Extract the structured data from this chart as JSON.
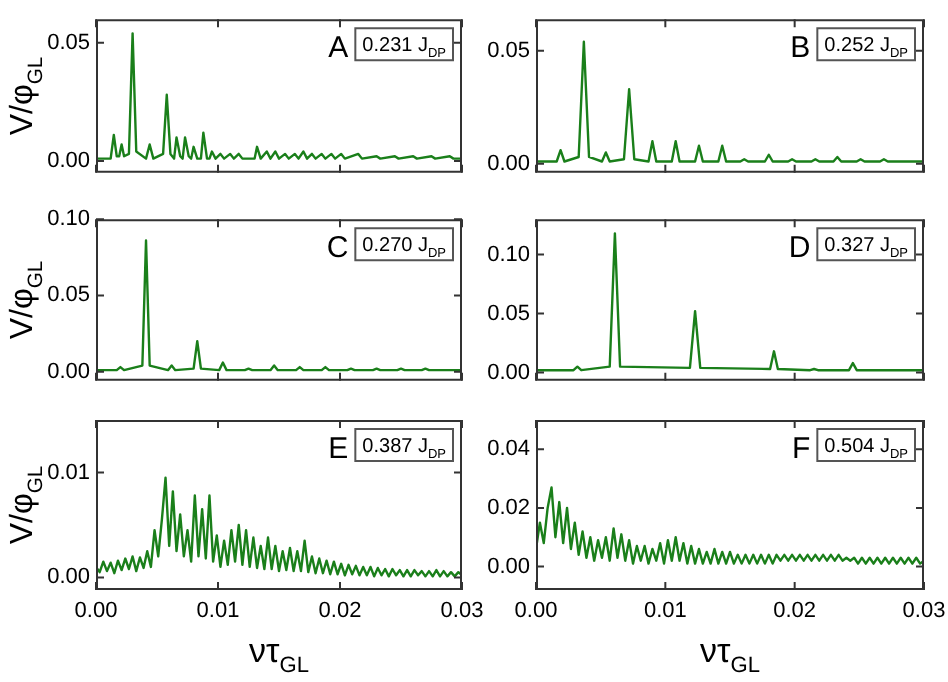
{
  "chart_data": [
    {
      "type": "line",
      "ylabel": "V/φ$_{GL}$",
      "annotations": [
        "A",
        "0.231 J$_{DP}$"
      ],
      "xlim": [
        0,
        0.03
      ],
      "ylim": [
        -0.005,
        0.06
      ],
      "xticks": [
        {
          "value": 0,
          "label": null
        },
        {
          "value": 0.01,
          "label": null
        },
        {
          "value": 0.02,
          "label": null
        },
        {
          "value": 0.03,
          "label": null
        }
      ],
      "yticks": [
        {
          "value": 0,
          "label": "0.00"
        },
        {
          "value": 0.05,
          "label": "0.05"
        }
      ],
      "tick_labels": "y",
      "series": [
        {
          "color": "#1a7f1a",
          "x": [
            0,
            0.0012,
            0.00146,
            0.0017,
            0.0019,
            0.0021,
            0.0023,
            0.0027,
            0.003,
            0.0033,
            0.0041,
            0.0044,
            0.0047,
            0.0055,
            0.0058,
            0.0061,
            0.0064,
            0.0066,
            0.0069,
            0.0071,
            0.0073,
            0.0076,
            0.0078,
            0.008,
            0.0083,
            0.0086,
            0.0088,
            0.0091,
            0.0093,
            0.0095,
            0.0098,
            0.0102,
            0.0105,
            0.011,
            0.0113,
            0.0117,
            0.012,
            0.013,
            0.0132,
            0.0135,
            0.014,
            0.0143,
            0.0147,
            0.015,
            0.0155,
            0.0158,
            0.0163,
            0.0166,
            0.017,
            0.0173,
            0.0177,
            0.018,
            0.0185,
            0.0188,
            0.0193,
            0.0196,
            0.0201,
            0.0204,
            0.0215,
            0.0218,
            0.023,
            0.0233,
            0.0245,
            0.0248,
            0.026,
            0.0263,
            0.0275,
            0.0278,
            0.029,
            0.0293,
            0.03
          ],
          "values": [
            0.001,
            0.001,
            0.011,
            0.002,
            0.002,
            0.007,
            0.002,
            0.003,
            0.054,
            0.004,
            0.001,
            0.007,
            0.001,
            0.003,
            0.028,
            0.003,
            0.001,
            0.01,
            0.002,
            0.001,
            0.01,
            0.002,
            0.001,
            0.006,
            0.001,
            0.001,
            0.012,
            0.001,
            0.001,
            0.004,
            0.001,
            0.003,
            0.001,
            0.003,
            0.001,
            0.003,
            0.001,
            0.001,
            0.006,
            0.001,
            0.004,
            0.001,
            0.004,
            0.001,
            0.003,
            0.001,
            0.003,
            0.001,
            0.004,
            0.001,
            0.003,
            0.001,
            0.003,
            0.001,
            0.003,
            0.001,
            0.003,
            0.001,
            0.003,
            0.001,
            0.002,
            0.001,
            0.002,
            0.001,
            0.002,
            0.001,
            0.002,
            0.001,
            0.002,
            0.001,
            0.001
          ]
        }
      ]
    },
    {
      "type": "line",
      "annotations": [
        "B",
        "0.252 J$_{DP}$"
      ],
      "xlim": [
        0,
        0.03
      ],
      "ylim": [
        -0.004,
        0.064
      ],
      "xticks": [
        {
          "value": 0,
          "label": null
        },
        {
          "value": 0.01,
          "label": null
        },
        {
          "value": 0.02,
          "label": null
        },
        {
          "value": 0.03,
          "label": null
        }
      ],
      "yticks": [
        {
          "value": 0,
          "label": "0.00"
        },
        {
          "value": 0.05,
          "label": "0.05"
        }
      ],
      "tick_labels": "y",
      "series": [
        {
          "color": "#1a7f1a",
          "x": [
            0,
            0.0016,
            0.0019,
            0.0022,
            0.0033,
            0.0037,
            0.0041,
            0.0051,
            0.0054,
            0.0057,
            0.0068,
            0.0072,
            0.0076,
            0.0087,
            0.009,
            0.0093,
            0.0105,
            0.0108,
            0.0111,
            0.0123,
            0.0126,
            0.0129,
            0.0141,
            0.0144,
            0.0147,
            0.0158,
            0.0161,
            0.0164,
            0.0177,
            0.018,
            0.0183,
            0.0195,
            0.0198,
            0.0201,
            0.0213,
            0.0216,
            0.0219,
            0.023,
            0.0233,
            0.0236,
            0.0248,
            0.0251,
            0.0254,
            0.0266,
            0.0269,
            0.0272,
            0.03
          ],
          "values": [
            0.001,
            0.001,
            0.006,
            0.001,
            0.003,
            0.054,
            0.003,
            0.001,
            0.005,
            0.001,
            0.002,
            0.033,
            0.002,
            0.001,
            0.01,
            0.001,
            0.001,
            0.01,
            0.001,
            0.001,
            0.008,
            0.001,
            0.001,
            0.008,
            0.001,
            0.001,
            0.002,
            0.001,
            0.001,
            0.004,
            0.001,
            0.001,
            0.002,
            0.001,
            0.001,
            0.002,
            0.001,
            0.001,
            0.003,
            0.001,
            0.001,
            0.002,
            0.001,
            0.001,
            0.002,
            0.001,
            0.001
          ]
        }
      ]
    },
    {
      "type": "line",
      "ylabel": "V/φ$_{GL}$",
      "annotations": [
        "C",
        "0.270 J$_{DP}$"
      ],
      "xlim": [
        0,
        0.03
      ],
      "ylim": [
        -0.006,
        0.1
      ],
      "xticks": [
        {
          "value": 0,
          "label": null
        },
        {
          "value": 0.01,
          "label": null
        },
        {
          "value": 0.02,
          "label": null
        },
        {
          "value": 0.03,
          "label": null
        }
      ],
      "yticks": [
        {
          "value": 0,
          "label": "0.00"
        },
        {
          "value": 0.05,
          "label": "0.05"
        },
        {
          "value": 0.1,
          "label": "0.10"
        }
      ],
      "tick_labels": "y",
      "series": [
        {
          "color": "#1a7f1a",
          "x": [
            0,
            0.0017,
            0.002,
            0.0023,
            0.0038,
            0.0041,
            0.0044,
            0.0059,
            0.0062,
            0.0065,
            0.008,
            0.0083,
            0.0086,
            0.0101,
            0.0104,
            0.0107,
            0.0122,
            0.0125,
            0.0128,
            0.0143,
            0.0146,
            0.0149,
            0.0164,
            0.0167,
            0.017,
            0.0185,
            0.0188,
            0.0191,
            0.0206,
            0.0209,
            0.0212,
            0.0227,
            0.023,
            0.0233,
            0.0247,
            0.025,
            0.0253,
            0.0267,
            0.027,
            0.0273,
            0.03
          ],
          "values": [
            0.001,
            0.001,
            0.003,
            0.001,
            0.004,
            0.086,
            0.004,
            0.001,
            0.004,
            0.001,
            0.002,
            0.02,
            0.002,
            0.001,
            0.006,
            0.001,
            0.001,
            0.002,
            0.001,
            0.001,
            0.004,
            0.001,
            0.001,
            0.003,
            0.001,
            0.001,
            0.003,
            0.001,
            0.001,
            0.002,
            0.001,
            0.001,
            0.002,
            0.001,
            0.001,
            0.002,
            0.001,
            0.001,
            0.002,
            0.001,
            0.001
          ]
        }
      ]
    },
    {
      "type": "line",
      "annotations": [
        "D",
        "0.327 J$_{DP}$"
      ],
      "xlim": [
        0,
        0.03
      ],
      "ylim": [
        -0.007,
        0.13
      ],
      "xticks": [
        {
          "value": 0,
          "label": null
        },
        {
          "value": 0.01,
          "label": null
        },
        {
          "value": 0.02,
          "label": null
        },
        {
          "value": 0.03,
          "label": null
        }
      ],
      "yticks": [
        {
          "value": 0,
          "label": "0.00"
        },
        {
          "value": 0.05,
          "label": "0.05"
        },
        {
          "value": 0.1,
          "label": "0.10"
        }
      ],
      "tick_labels": "y",
      "series": [
        {
          "color": "#1a7f1a",
          "x": [
            0,
            0.0029,
            0.0032,
            0.0035,
            0.0057,
            0.0061,
            0.0065,
            0.0119,
            0.0123,
            0.0127,
            0.0181,
            0.0184,
            0.0187,
            0.0212,
            0.0215,
            0.0218,
            0.0242,
            0.0245,
            0.0248,
            0.03
          ],
          "values": [
            0.002,
            0.002,
            0.005,
            0.002,
            0.005,
            0.118,
            0.005,
            0.004,
            0.052,
            0.004,
            0.003,
            0.018,
            0.003,
            0.002,
            0.003,
            0.002,
            0.002,
            0.008,
            0.002,
            0.002
          ]
        }
      ]
    },
    {
      "type": "line",
      "ylabel": "V/φ$_{GL}$",
      "xlabel": "ντ$_{GL}$",
      "annotations": [
        "E",
        "0.387 J$_{DP}$"
      ],
      "xlim": [
        0,
        0.03
      ],
      "ylim": [
        -0.0012,
        0.015
      ],
      "xticks": [
        {
          "value": 0,
          "label": "0.00"
        },
        {
          "value": 0.01,
          "label": "0.01"
        },
        {
          "value": 0.02,
          "label": "0.02"
        },
        {
          "value": 0.03,
          "label": "0.03"
        }
      ],
      "yticks": [
        {
          "value": 0,
          "label": "0.00"
        },
        {
          "value": 0.01,
          "label": "0.01"
        }
      ],
      "x": [
        0,
        0.0003,
        0.0006,
        0.0009,
        0.0012,
        0.0015,
        0.0018,
        0.0021,
        0.0024,
        0.0027,
        0.003,
        0.0033,
        0.0036,
        0.0039,
        0.0042,
        0.0045,
        0.0048,
        0.0051,
        0.0054,
        0.0057,
        0.006,
        0.0063,
        0.0066,
        0.0069,
        0.0072,
        0.0075,
        0.0078,
        0.0081,
        0.0084,
        0.0087,
        0.009,
        0.0093,
        0.0096,
        0.0099,
        0.0102,
        0.0105,
        0.0108,
        0.0111,
        0.0114,
        0.0117,
        0.012,
        0.0123,
        0.0126,
        0.0129,
        0.0132,
        0.0135,
        0.0138,
        0.0141,
        0.0144,
        0.0147,
        0.015,
        0.0153,
        0.0156,
        0.0159,
        0.0162,
        0.0165,
        0.0168,
        0.0171,
        0.0174,
        0.0177,
        0.018,
        0.0183,
        0.0186,
        0.0189,
        0.0192,
        0.0195,
        0.0198,
        0.0201,
        0.0204,
        0.0207,
        0.021,
        0.0213,
        0.0216,
        0.0219,
        0.0222,
        0.0225,
        0.0228,
        0.0231,
        0.0234,
        0.0237,
        0.024,
        0.0243,
        0.0246,
        0.0249,
        0.0252,
        0.0255,
        0.0258,
        0.0261,
        0.0264,
        0.0267,
        0.027,
        0.0273,
        0.0276,
        0.0279,
        0.0282,
        0.0285,
        0.0288,
        0.0291,
        0.0294,
        0.0297,
        0.03
      ],
      "series": [
        {
          "color": "#1a7f1a",
          "values": [
            0.001,
            0.0005,
            0.0015,
            0.0006,
            0.0014,
            0.0004,
            0.0016,
            0.0007,
            0.0018,
            0.0008,
            0.002,
            0.0006,
            0.0019,
            0.0009,
            0.0025,
            0.001,
            0.0045,
            0.002,
            0.0055,
            0.0095,
            0.003,
            0.0082,
            0.0025,
            0.006,
            0.002,
            0.0045,
            0.0015,
            0.0078,
            0.002,
            0.0065,
            0.0018,
            0.0078,
            0.0015,
            0.004,
            0.001,
            0.0035,
            0.0012,
            0.0045,
            0.0015,
            0.005,
            0.0012,
            0.0045,
            0.001,
            0.0038,
            0.0009,
            0.003,
            0.0008,
            0.0038,
            0.0008,
            0.003,
            0.0006,
            0.0025,
            0.0007,
            0.0028,
            0.0006,
            0.0025,
            0.0006,
            0.0035,
            0.0005,
            0.002,
            0.0004,
            0.0018,
            0.0004,
            0.0016,
            0.0003,
            0.0015,
            0.0003,
            0.0013,
            0.0002,
            0.0012,
            0.0003,
            0.0011,
            0.0002,
            0.001,
            0.0002,
            0.001,
            0.0001,
            0.0009,
            0.0002,
            0.0008,
            0.0001,
            0.0008,
            0.0002,
            0.0007,
            0.0001,
            0.0007,
            0.0001,
            0.0007,
            0.0002,
            0.0006,
            0.0001,
            0.0006,
            0.0001,
            0.0007,
            0.0001,
            0.0006,
            0.0001,
            0.0005,
            0.0001,
            0.0005,
            0.0002
          ]
        }
      ]
    },
    {
      "type": "line",
      "xlabel": "ντ$_{GL}$",
      "annotations": [
        "F",
        "0.504 J$_{DP}$"
      ],
      "xlim": [
        0,
        0.03
      ],
      "ylim": [
        -0.008,
        0.05
      ],
      "xticks": [
        {
          "value": 0,
          "label": "0.00"
        },
        {
          "value": 0.01,
          "label": "0.01"
        },
        {
          "value": 0.02,
          "label": "0.02"
        },
        {
          "value": 0.03,
          "label": "0.03"
        }
      ],
      "yticks": [
        {
          "value": 0,
          "label": "0.00"
        },
        {
          "value": 0.02,
          "label": "0.02"
        },
        {
          "value": 0.04,
          "label": "0.04"
        }
      ],
      "x": [
        0,
        0.0003,
        0.0006,
        0.0009,
        0.0012,
        0.0015,
        0.0018,
        0.0021,
        0.0024,
        0.0027,
        0.003,
        0.0033,
        0.0036,
        0.0039,
        0.0042,
        0.0045,
        0.0048,
        0.0051,
        0.0054,
        0.0057,
        0.006,
        0.0063,
        0.0066,
        0.0069,
        0.0072,
        0.0075,
        0.0078,
        0.0081,
        0.0084,
        0.0087,
        0.009,
        0.0093,
        0.0096,
        0.0099,
        0.0102,
        0.0105,
        0.0108,
        0.0111,
        0.0114,
        0.0117,
        0.012,
        0.0123,
        0.0126,
        0.0129,
        0.0132,
        0.0135,
        0.0138,
        0.0141,
        0.0144,
        0.0147,
        0.015,
        0.0153,
        0.0156,
        0.0159,
        0.0162,
        0.0165,
        0.0168,
        0.0171,
        0.0174,
        0.0177,
        0.018,
        0.0183,
        0.0186,
        0.0189,
        0.0192,
        0.0195,
        0.0198,
        0.0201,
        0.0204,
        0.0207,
        0.021,
        0.0213,
        0.0216,
        0.0219,
        0.0222,
        0.0225,
        0.0228,
        0.0231,
        0.0234,
        0.0237,
        0.024,
        0.0243,
        0.0246,
        0.0249,
        0.0252,
        0.0255,
        0.0258,
        0.0261,
        0.0264,
        0.0267,
        0.027,
        0.0273,
        0.0276,
        0.0279,
        0.0282,
        0.0285,
        0.0288,
        0.0291,
        0.0294,
        0.0297,
        0.03
      ],
      "series": [
        {
          "color": "#1a7f1a",
          "values": [
            0.006,
            0.015,
            0.008,
            0.02,
            0.027,
            0.01,
            0.022,
            0.008,
            0.02,
            0.006,
            0.015,
            0.004,
            0.012,
            0.003,
            0.01,
            0.002,
            0.009,
            0.003,
            0.01,
            0.002,
            0.013,
            0.003,
            0.011,
            0.002,
            0.009,
            0.001,
            0.007,
            0.002,
            0.007,
            0.001,
            0.006,
            0.002,
            0.008,
            0.001,
            0.009,
            0.002,
            0.01,
            0.002,
            0.008,
            0.001,
            0.007,
            0.001,
            0.006,
            0.001,
            0.005,
            0.001,
            0.006,
            0.001,
            0.005,
            0.001,
            0.005,
            0.001,
            0.004,
            0.001,
            0.004,
            0.001,
            0.004,
            0.001,
            0.004,
            0.001,
            0.004,
            0.001,
            0.004,
            0.002,
            0.004,
            0.002,
            0.004,
            0.002,
            0.004,
            0.002,
            0.004,
            0.002,
            0.004,
            0.002,
            0.004,
            0.002,
            0.004,
            0.002,
            0.004,
            0.002,
            0.003,
            0.002,
            0.003,
            0.001,
            0.003,
            0.001,
            0.003,
            0.001,
            0.003,
            0.001,
            0.003,
            0.001,
            0.003,
            0.001,
            0.003,
            0.001,
            0.003,
            0.001,
            0.003,
            0.001,
            0.002
          ]
        }
      ]
    }
  ]
}
